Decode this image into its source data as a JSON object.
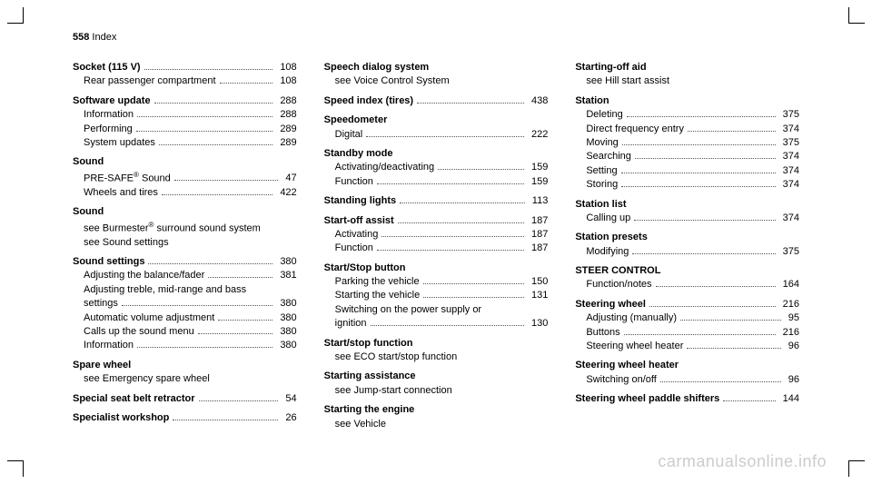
{
  "header": {
    "page_number": "558",
    "section": "Index"
  },
  "watermark": "carmanualsonline.info",
  "columns": [
    {
      "entries": [
        {
          "type": "main",
          "label": "Socket (115 V)",
          "page": "108",
          "subs": [
            {
              "text": "Rear passenger compartment",
              "page": "108"
            }
          ]
        },
        {
          "type": "main",
          "label": "Software update",
          "page": "288",
          "subs": [
            {
              "text": "Information",
              "page": "288"
            },
            {
              "text": "Performing",
              "page": "289"
            },
            {
              "text": "System updates",
              "page": "289"
            }
          ]
        },
        {
          "type": "main-nolink",
          "label": "Sound",
          "subs": [
            {
              "text": "PRE‑SAFE® Sound",
              "page": "47",
              "has_reg": true
            },
            {
              "text": "Wheels and tires",
              "page": "422"
            }
          ]
        },
        {
          "type": "main-nolink",
          "label": "Sound",
          "subs": [
            {
              "see": "see Burmester® surround sound system"
            },
            {
              "see": "see Sound settings"
            }
          ]
        },
        {
          "type": "main",
          "label": "Sound settings",
          "page": "380",
          "subs": [
            {
              "text": "Adjusting the balance/fader",
              "page": "381"
            },
            {
              "multiline": [
                "Adjusting treble, mid-range and bass",
                "settings"
              ],
              "page": "380"
            },
            {
              "text": "Automatic volume adjustment",
              "page": "380"
            },
            {
              "text": "Calls up the sound menu",
              "page": "380"
            },
            {
              "text": "Information",
              "page": "380"
            }
          ]
        },
        {
          "type": "main-nolink",
          "label": "Spare wheel",
          "subs": [
            {
              "see": "see Emergency spare wheel"
            }
          ]
        },
        {
          "type": "main",
          "label": "Special seat belt retractor",
          "page": "54"
        },
        {
          "type": "main",
          "label": "Specialist workshop",
          "page": "26"
        }
      ]
    },
    {
      "entries": [
        {
          "type": "main-nolink",
          "label": "Speech dialog system",
          "subs": [
            {
              "see": "see Voice Control System"
            }
          ]
        },
        {
          "type": "main",
          "label": "Speed index (tires)",
          "page": "438"
        },
        {
          "type": "main-nolink",
          "label": "Speedometer",
          "subs": [
            {
              "text": "Digital",
              "page": "222"
            }
          ]
        },
        {
          "type": "main-nolink",
          "label": "Standby mode",
          "subs": [
            {
              "text": "Activating/deactivating",
              "page": "159"
            },
            {
              "text": "Function",
              "page": "159"
            }
          ]
        },
        {
          "type": "main",
          "label": "Standing lights",
          "page": "113"
        },
        {
          "type": "main",
          "label": "Start-off assist",
          "page": "187",
          "subs": [
            {
              "text": "Activating",
              "page": "187"
            },
            {
              "text": "Function",
              "page": "187"
            }
          ]
        },
        {
          "type": "main-nolink",
          "label": "Start/Stop button",
          "subs": [
            {
              "text": "Parking the vehicle",
              "page": "150"
            },
            {
              "text": "Starting the vehicle",
              "page": "131"
            },
            {
              "multiline": [
                "Switching on the power supply or",
                "ignition"
              ],
              "page": "130"
            }
          ]
        },
        {
          "type": "main-nolink",
          "label": "Start/stop function",
          "subs": [
            {
              "see": "see ECO start/stop function"
            }
          ]
        },
        {
          "type": "main-nolink",
          "label": "Starting assistance",
          "subs": [
            {
              "see": "see Jump-start connection"
            }
          ]
        },
        {
          "type": "main-nolink",
          "label": "Starting the engine",
          "subs": [
            {
              "see": "see Vehicle"
            }
          ]
        }
      ]
    },
    {
      "entries": [
        {
          "type": "main-nolink",
          "label": "Starting-off aid",
          "subs": [
            {
              "see": "see Hill start assist"
            }
          ]
        },
        {
          "type": "main-nolink",
          "label": "Station",
          "subs": [
            {
              "text": "Deleting",
              "page": "375"
            },
            {
              "text": "Direct frequency entry",
              "page": "374"
            },
            {
              "text": "Moving",
              "page": "375"
            },
            {
              "text": "Searching",
              "page": "374"
            },
            {
              "text": "Setting",
              "page": "374"
            },
            {
              "text": "Storing",
              "page": "374"
            }
          ]
        },
        {
          "type": "main-nolink",
          "label": "Station list",
          "subs": [
            {
              "text": "Calling up",
              "page": "374"
            }
          ]
        },
        {
          "type": "main-nolink",
          "label": "Station presets",
          "subs": [
            {
              "text": "Modifying",
              "page": "375"
            }
          ]
        },
        {
          "type": "main-nolink",
          "label": "STEER CONTROL",
          "subs": [
            {
              "text": "Function/notes",
              "page": "164"
            }
          ]
        },
        {
          "type": "main",
          "label": "Steering wheel",
          "page": "216",
          "subs": [
            {
              "text": "Adjusting (manually)",
              "page": "95"
            },
            {
              "text": "Buttons",
              "page": "216"
            },
            {
              "text": "Steering wheel heater",
              "page": "96"
            }
          ]
        },
        {
          "type": "main-nolink",
          "label": "Steering wheel heater",
          "subs": [
            {
              "text": "Switching on/off",
              "page": "96"
            }
          ]
        },
        {
          "type": "main",
          "label": "Steering wheel paddle shifters",
          "page": "144"
        }
      ]
    }
  ]
}
